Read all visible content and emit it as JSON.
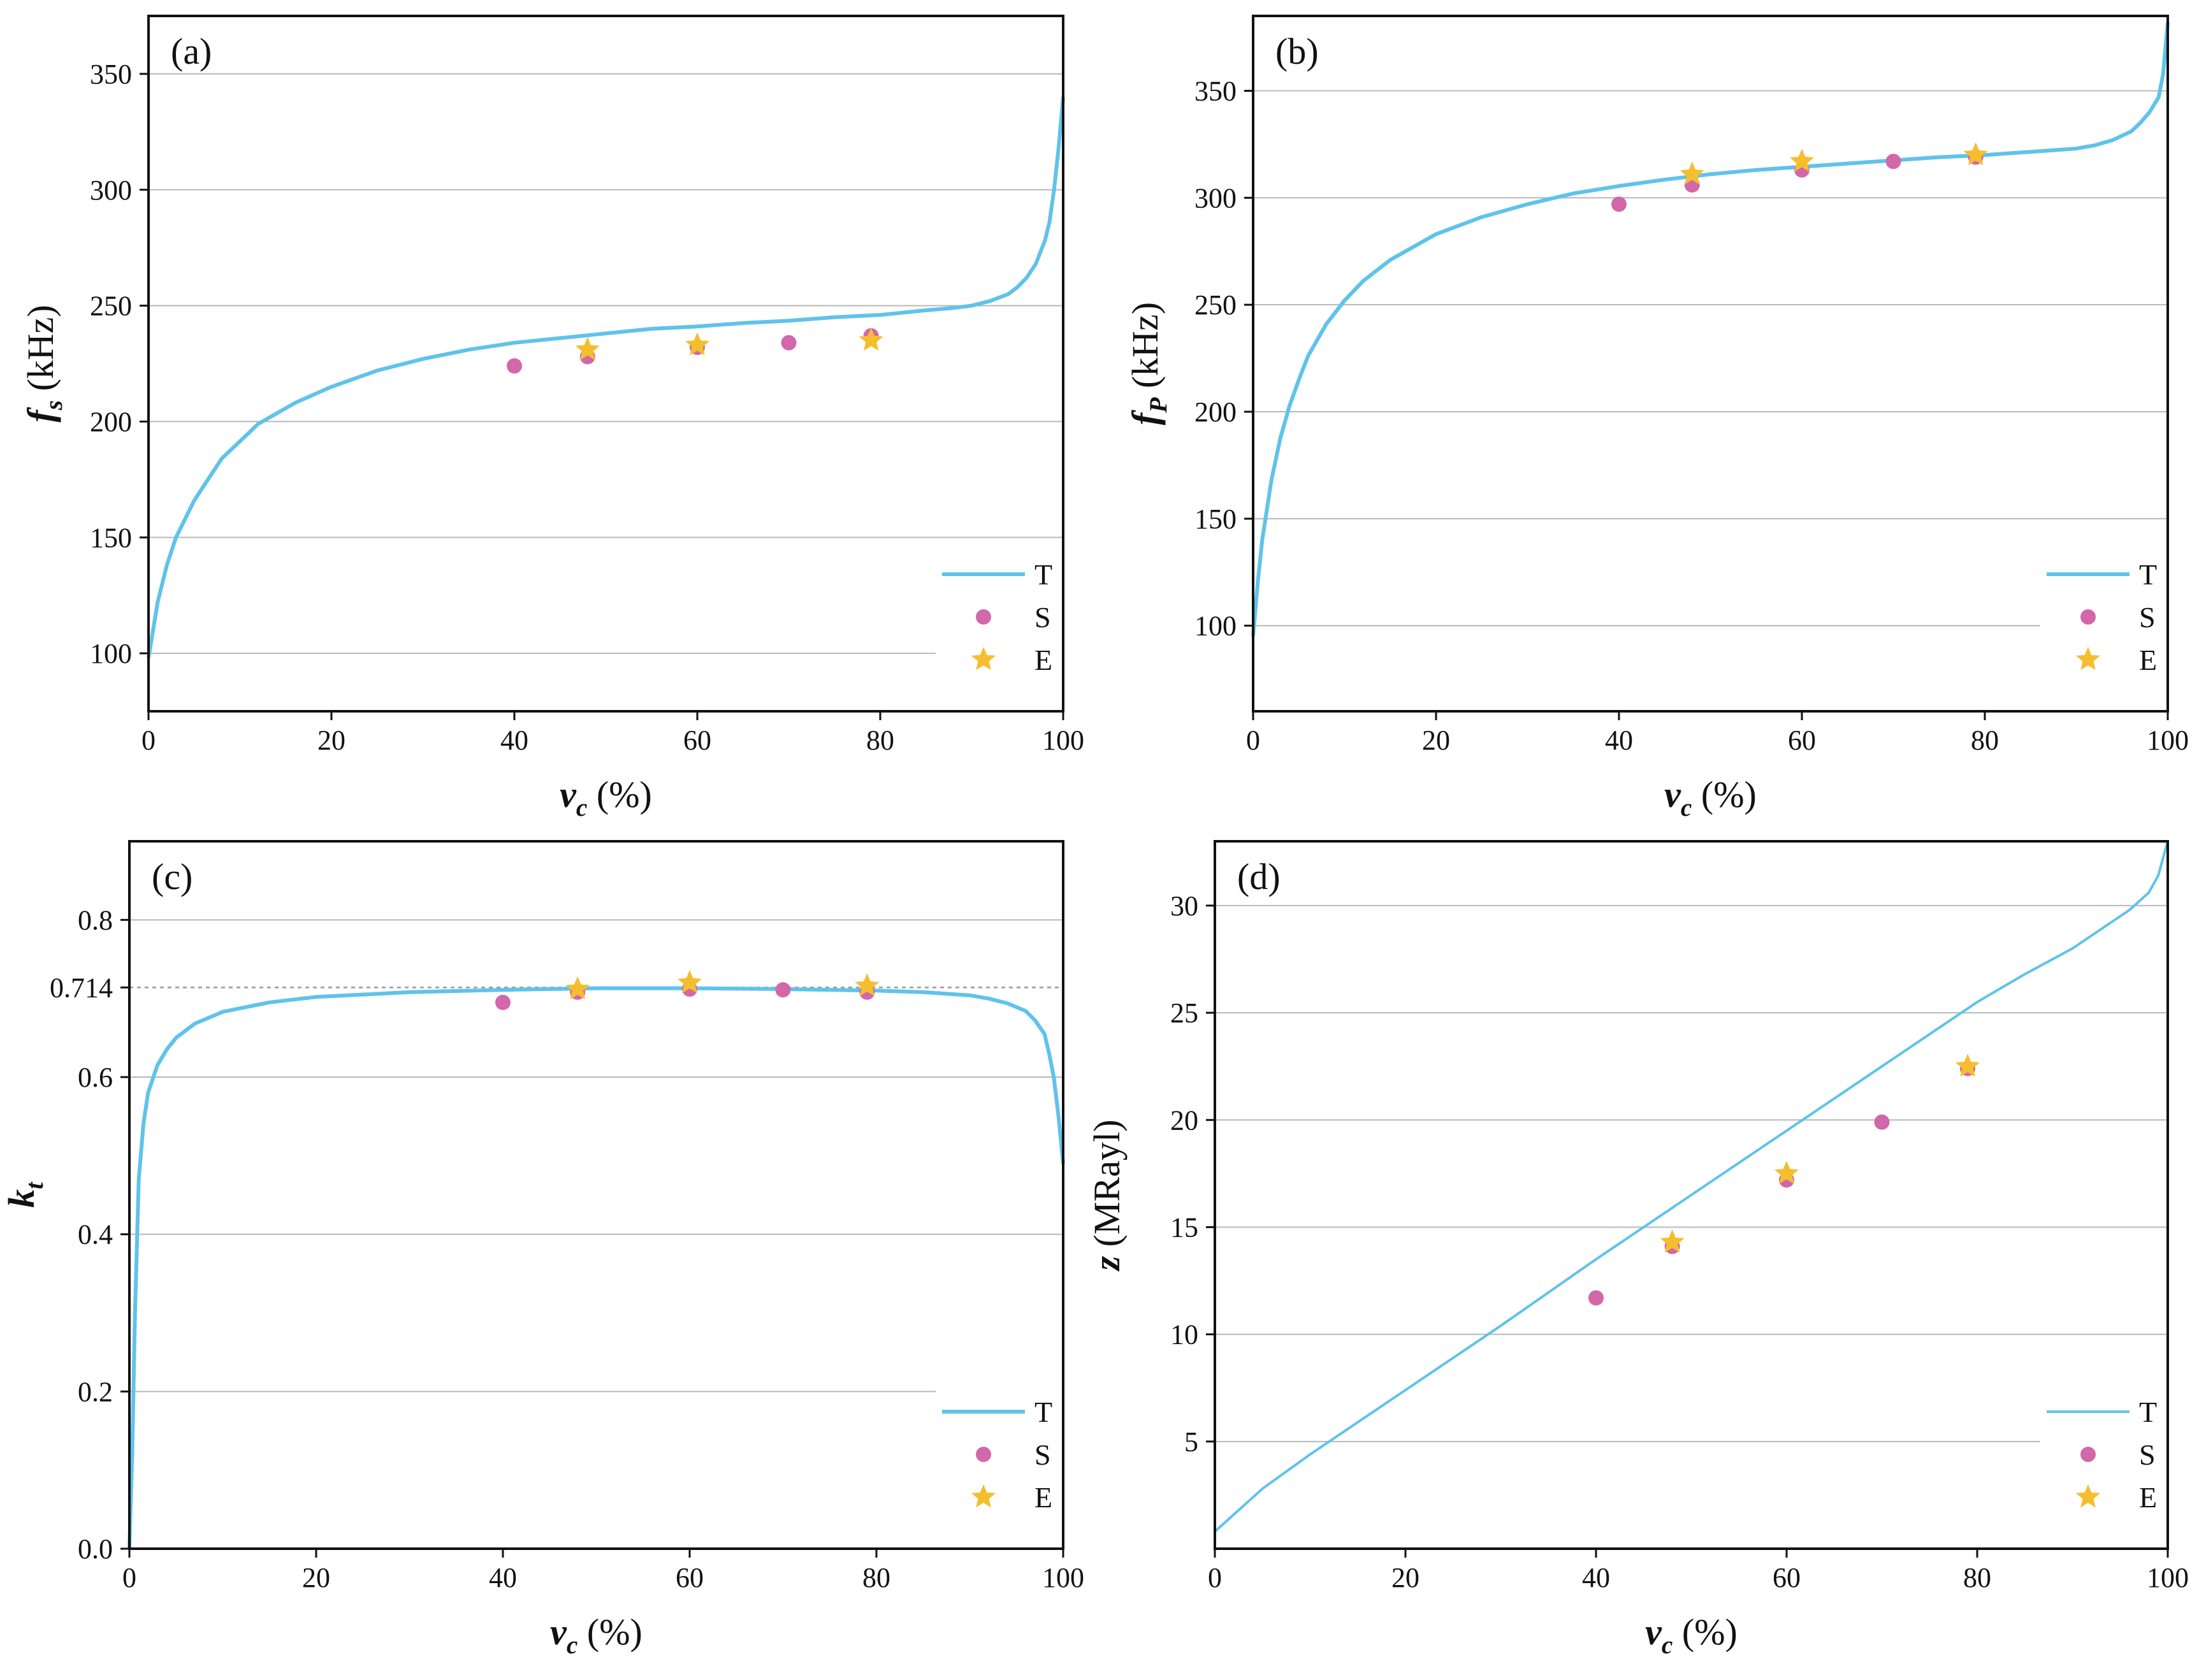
{
  "figure": {
    "colors": {
      "theory": "#5fc3ea",
      "simulation": "#d267a9",
      "experiment": "#f5be2e",
      "grid": "#b8b8b8",
      "axis": "#111111"
    },
    "icons": {
      "simulation": "circle-marker",
      "experiment": "star-marker"
    }
  },
  "chart_data": [
    {
      "panel": "(a)",
      "type": "line+scatter",
      "xlabel": {
        "var": "v",
        "sub": "c",
        "unit": " (%)"
      },
      "ylabel": {
        "var": "f",
        "sub": "s",
        "unit": " (kHz)"
      },
      "xlim": [
        0,
        100
      ],
      "ylim": [
        75,
        375
      ],
      "xticks": [
        0,
        20,
        40,
        60,
        80,
        100
      ],
      "yticks": [
        100,
        150,
        200,
        250,
        300,
        350
      ],
      "grid": "horizontal",
      "legend_placement": "bottom-right",
      "series": [
        {
          "name": "T",
          "kind": "line",
          "x": [
            0,
            1,
            2,
            3,
            5,
            8,
            12,
            16,
            20,
            25,
            30,
            35,
            40,
            45,
            50,
            55,
            60,
            65,
            70,
            75,
            80,
            85,
            88,
            90,
            92,
            94,
            95,
            96,
            97,
            98,
            98.5,
            99,
            99.5,
            100
          ],
          "y": [
            98,
            122,
            138,
            150,
            166,
            184,
            199,
            208,
            215,
            222,
            227,
            231,
            234,
            236,
            238,
            240,
            241,
            242.5,
            243.5,
            245,
            246,
            248,
            249,
            250,
            252,
            255,
            258,
            262,
            268,
            278,
            286,
            300,
            318,
            340
          ]
        },
        {
          "name": "S",
          "kind": "scatter",
          "x": [
            40,
            48,
            60,
            70,
            79
          ],
          "y": [
            224,
            228,
            232,
            234,
            237
          ]
        },
        {
          "name": "E",
          "kind": "star",
          "x": [
            48,
            60,
            79
          ],
          "y": [
            231,
            233,
            235
          ]
        }
      ]
    },
    {
      "panel": "(b)",
      "type": "line+scatter",
      "xlabel": {
        "var": "v",
        "sub": "c",
        "unit": " (%)"
      },
      "ylabel": {
        "var": "f",
        "sub": "P",
        "unit": " (kHz)"
      },
      "xlim": [
        0,
        100
      ],
      "ylim": [
        60,
        385
      ],
      "xticks": [
        0,
        20,
        40,
        60,
        80,
        100
      ],
      "yticks": [
        100,
        150,
        200,
        250,
        300,
        350
      ],
      "grid": "horizontal",
      "legend_placement": "bottom-right",
      "series": [
        {
          "name": "T",
          "kind": "line",
          "x": [
            0,
            0.5,
            1,
            2,
            3,
            4,
            5,
            6,
            8,
            10,
            12,
            15,
            20,
            25,
            30,
            35,
            40,
            45,
            50,
            55,
            60,
            65,
            70,
            75,
            80,
            85,
            90,
            92,
            94,
            96,
            97,
            98,
            99,
            99.5,
            100
          ],
          "y": [
            95,
            120,
            140,
            168,
            188,
            203,
            215,
            226,
            241,
            252,
            261,
            271,
            283,
            291,
            297,
            302,
            305.5,
            308.5,
            311,
            313,
            314.5,
            316,
            317.5,
            319,
            320,
            321.5,
            323,
            324.5,
            327,
            331,
            335,
            340,
            347,
            358,
            382
          ]
        },
        {
          "name": "S",
          "kind": "scatter",
          "x": [
            40,
            48,
            60,
            70,
            79
          ],
          "y": [
            297,
            306,
            313,
            317,
            319
          ]
        },
        {
          "name": "E",
          "kind": "star",
          "x": [
            48,
            60,
            79
          ],
          "y": [
            311,
            317,
            320
          ]
        }
      ]
    },
    {
      "panel": "(c)",
      "type": "line+scatter",
      "xlabel": {
        "var": "v",
        "sub": "c",
        "unit": " (%)"
      },
      "ylabel": {
        "var": "k",
        "sub": "t",
        "unit": ""
      },
      "xlim": [
        0,
        100
      ],
      "ylim": [
        0,
        0.9
      ],
      "xticks": [
        0,
        20,
        40,
        60,
        80,
        100
      ],
      "yticks": [
        0.0,
        0.2,
        0.4,
        0.6,
        0.714,
        0.8
      ],
      "ytick_labels": [
        "0.0",
        "0.2",
        "0.4",
        "0.6",
        "0.714",
        "0.8"
      ],
      "reference_line": 0.714,
      "grid": "horizontal",
      "legend_placement": "bottom-right",
      "series": [
        {
          "name": "T",
          "kind": "line",
          "x": [
            0,
            0.3,
            0.6,
            1,
            1.5,
            2,
            3,
            4,
            5,
            7,
            10,
            15,
            20,
            30,
            40,
            50,
            60,
            70,
            80,
            85,
            90,
            92,
            94,
            96,
            97,
            98,
            98.5,
            99,
            99.5,
            100
          ],
          "y": [
            0,
            0.12,
            0.3,
            0.47,
            0.54,
            0.58,
            0.615,
            0.635,
            0.65,
            0.668,
            0.683,
            0.695,
            0.702,
            0.708,
            0.711,
            0.713,
            0.713,
            0.712,
            0.71,
            0.708,
            0.704,
            0.7,
            0.694,
            0.684,
            0.672,
            0.655,
            0.63,
            0.6,
            0.55,
            0.49
          ]
        },
        {
          "name": "S",
          "kind": "scatter",
          "x": [
            40,
            48,
            60,
            70,
            79
          ],
          "y": [
            0.695,
            0.708,
            0.712,
            0.711,
            0.708
          ]
        },
        {
          "name": "E",
          "kind": "star",
          "x": [
            48,
            60,
            79
          ],
          "y": [
            0.712,
            0.72,
            0.716
          ]
        }
      ]
    },
    {
      "panel": "(d)",
      "type": "line+scatter",
      "xlabel": {
        "var": "v",
        "sub": "c",
        "unit": " (%)"
      },
      "ylabel": {
        "var": "z",
        "sub": "",
        "unit": " (MRayl)"
      },
      "xlim": [
        0,
        100
      ],
      "ylim": [
        0,
        33
      ],
      "xticks": [
        0,
        20,
        40,
        60,
        80,
        100
      ],
      "yticks": [
        5,
        10,
        15,
        20,
        25,
        30
      ],
      "grid": "horizontal",
      "legend_placement": "bottom-right",
      "series": [
        {
          "name": "T",
          "kind": "line",
          "x": [
            0,
            5,
            10,
            20,
            30,
            40,
            50,
            60,
            70,
            80,
            85,
            90,
            93,
            96,
            98,
            99,
            99.5,
            100
          ],
          "y": [
            0.8,
            2.8,
            4.4,
            7.4,
            10.4,
            13.5,
            16.5,
            19.5,
            22.5,
            25.5,
            26.8,
            28.0,
            28.9,
            29.8,
            30.6,
            31.4,
            32.2,
            33
          ]
        },
        {
          "name": "S",
          "kind": "scatter",
          "x": [
            40,
            48,
            60,
            70,
            79
          ],
          "y": [
            11.7,
            14.1,
            17.2,
            19.9,
            22.4
          ]
        },
        {
          "name": "E",
          "kind": "star",
          "x": [
            48,
            60,
            79
          ],
          "y": [
            14.3,
            17.5,
            22.5
          ]
        }
      ]
    }
  ]
}
